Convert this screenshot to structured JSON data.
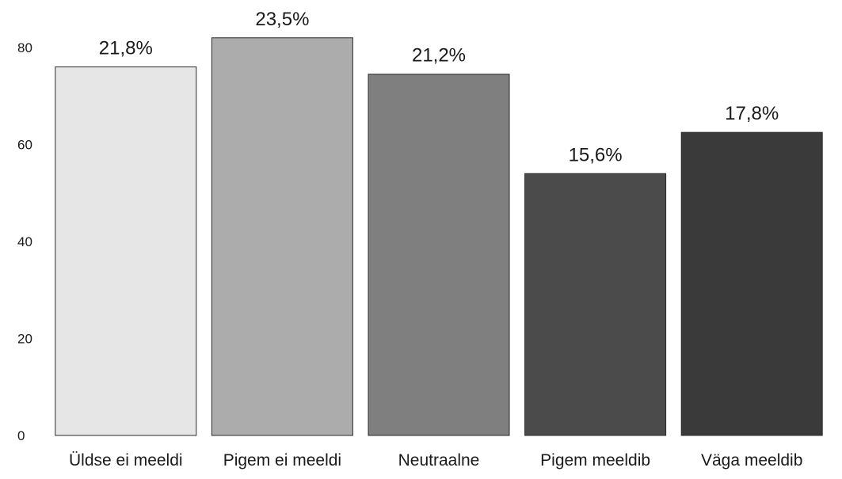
{
  "chart_data": {
    "type": "bar",
    "title": "",
    "xlabel": "",
    "ylabel": "",
    "ylim": [
      0,
      80
    ],
    "yticks": [
      "0",
      "20",
      "40",
      "60",
      "80"
    ],
    "grid": false,
    "categories": [
      "Üldse ei meeldi",
      "Pigem ei meeldi",
      "Neutraalne",
      "Pigem meeldib",
      "Väga meeldib"
    ],
    "values": [
      76,
      82,
      74.5,
      54,
      62.5
    ],
    "data_labels": [
      "21,8%",
      "23,5%",
      "21,2%",
      "15,6%",
      "17,8%"
    ],
    "colors": [
      "#e6e6e6",
      "#acacac",
      "#7f7f7f",
      "#4b4b4b",
      "#3a3a3a"
    ]
  }
}
